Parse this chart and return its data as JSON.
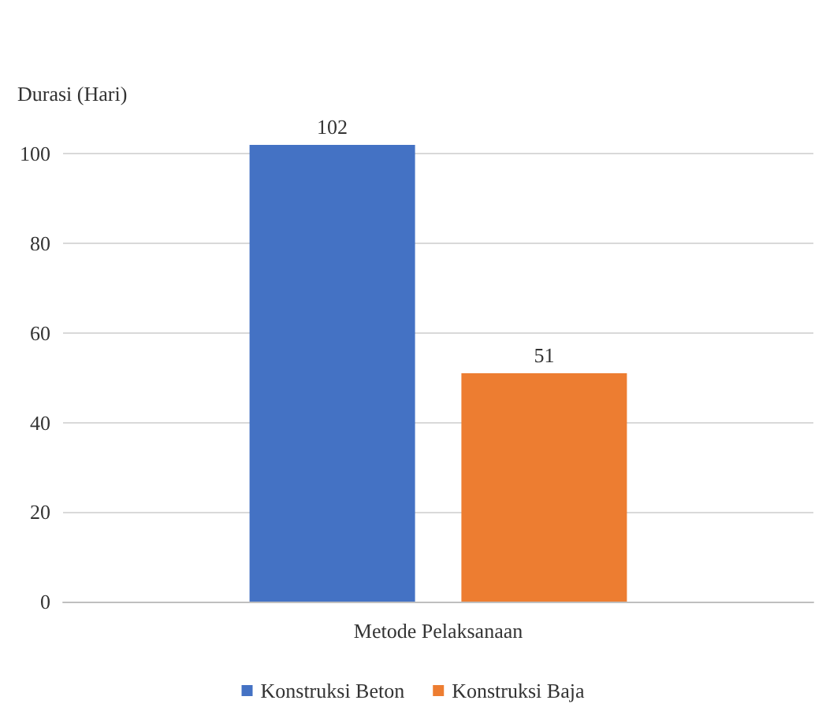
{
  "chart_data": {
    "type": "bar",
    "ylabel": "Durasi (Hari)",
    "categories": [
      "Metode Pelaksanaan"
    ],
    "series": [
      {
        "name": "Konstruksi Beton",
        "color": "#4472c4",
        "values": [
          102
        ]
      },
      {
        "name": "Konstruksi Baja",
        "color": "#ed7d31",
        "values": [
          51
        ]
      }
    ],
    "ylim": [
      0,
      102
    ],
    "yticks": [
      0,
      20,
      40,
      60,
      80,
      100
    ],
    "grid": "y",
    "legend": "bottom",
    "data_labels": true
  }
}
